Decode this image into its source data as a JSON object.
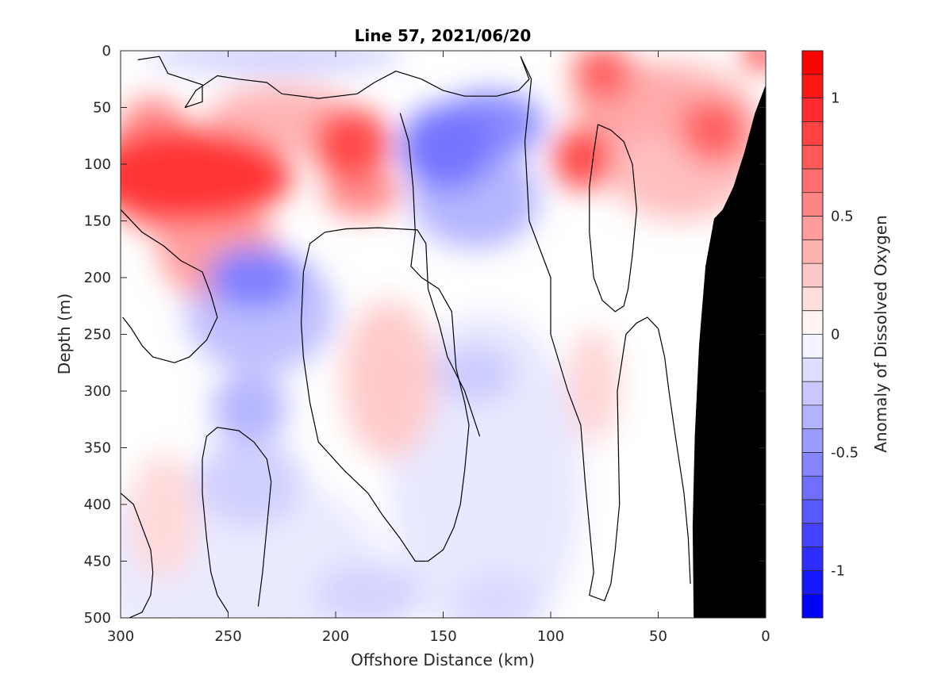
{
  "chart_data": {
    "type": "heatmap",
    "title": "Line 57, 2021/06/20",
    "xlabel": "Offshore Distance (km)",
    "ylabel": "Depth (m)",
    "colorbar_label": "Anomaly of Dissolved Oxygen",
    "xlim": [
      300,
      0
    ],
    "ylim": [
      0,
      500
    ],
    "x_ticks": [
      300,
      250,
      200,
      150,
      100,
      50,
      0
    ],
    "y_ticks": [
      0,
      50,
      100,
      150,
      200,
      250,
      300,
      350,
      400,
      450,
      500
    ],
    "colorbar": {
      "range": [
        -1.2,
        1.2
      ],
      "levels": 24,
      "ticks": [
        -1,
        -0.5,
        0,
        0.5,
        1
      ],
      "tick_labels": [
        "-1",
        "-0.5",
        "0",
        "0.5",
        "1"
      ],
      "colormap": "blue-white-red"
    },
    "colors": {
      "negative": "#0000ff",
      "zero": "#ffffff",
      "positive": "#ff0000",
      "bathymetry": "#000000",
      "contour": "#000000"
    },
    "contour_level": 0,
    "features": [
      {
        "kind": "positive",
        "x": 268,
        "y": 110,
        "rx": 48,
        "ry": 42,
        "value": 0.95
      },
      {
        "kind": "positive",
        "x": 285,
        "y": 100,
        "rx": 20,
        "ry": 60,
        "value": 0.55
      },
      {
        "kind": "positive",
        "x": 255,
        "y": 175,
        "rx": 28,
        "ry": 45,
        "value": 0.45
      },
      {
        "kind": "positive",
        "x": 193,
        "y": 82,
        "rx": 18,
        "ry": 32,
        "value": 0.85
      },
      {
        "kind": "positive",
        "x": 188,
        "y": 125,
        "rx": 18,
        "ry": 22,
        "value": 0.55
      },
      {
        "kind": "positive",
        "x": 225,
        "y": 60,
        "rx": 35,
        "ry": 30,
        "value": 0.35
      },
      {
        "kind": "positive",
        "x": 175,
        "y": 290,
        "rx": 22,
        "ry": 70,
        "value": 0.25
      },
      {
        "kind": "positive",
        "x": 280,
        "y": 410,
        "rx": 16,
        "ry": 55,
        "value": 0.18
      },
      {
        "kind": "positive",
        "x": 85,
        "y": 95,
        "rx": 14,
        "ry": 28,
        "value": 0.85
      },
      {
        "kind": "positive",
        "x": 76,
        "y": 20,
        "rx": 14,
        "ry": 25,
        "value": 0.75
      },
      {
        "kind": "positive",
        "x": 60,
        "y": 45,
        "rx": 30,
        "ry": 35,
        "value": 0.4
      },
      {
        "kind": "positive",
        "x": 24,
        "y": 70,
        "rx": 16,
        "ry": 30,
        "value": 0.75
      },
      {
        "kind": "positive",
        "x": 40,
        "y": 80,
        "rx": 40,
        "ry": 70,
        "value": 0.3
      },
      {
        "kind": "positive",
        "x": 3,
        "y": 5,
        "rx": 8,
        "ry": 12,
        "value": 1.15
      },
      {
        "kind": "positive",
        "x": 80,
        "y": 295,
        "rx": 12,
        "ry": 50,
        "value": 0.2
      },
      {
        "kind": "negative",
        "x": 148,
        "y": 85,
        "rx": 22,
        "ry": 38,
        "value": -0.65
      },
      {
        "kind": "negative",
        "x": 128,
        "y": 65,
        "rx": 25,
        "ry": 30,
        "value": -0.55
      },
      {
        "kind": "negative",
        "x": 135,
        "y": 130,
        "rx": 30,
        "ry": 45,
        "value": -0.35
      },
      {
        "kind": "negative",
        "x": 238,
        "y": 200,
        "rx": 22,
        "ry": 28,
        "value": -0.6
      },
      {
        "kind": "negative",
        "x": 235,
        "y": 230,
        "rx": 35,
        "ry": 55,
        "value": -0.3
      },
      {
        "kind": "negative",
        "x": 240,
        "y": 315,
        "rx": 18,
        "ry": 30,
        "value": -0.35
      },
      {
        "kind": "negative",
        "x": 240,
        "y": 380,
        "rx": 25,
        "ry": 40,
        "value": -0.22
      },
      {
        "kind": "negative",
        "x": 135,
        "y": 285,
        "rx": 18,
        "ry": 25,
        "value": -0.25
      },
      {
        "kind": "negative",
        "x": 228,
        "y": 5,
        "rx": 60,
        "ry": 15,
        "value": -0.22
      },
      {
        "kind": "negative",
        "x": 62,
        "y": 105,
        "rx": 8,
        "ry": 30,
        "value": -0.12
      },
      {
        "kind": "negative",
        "x": 185,
        "y": 480,
        "rx": 25,
        "ry": 30,
        "value": -0.2
      },
      {
        "kind": "negative",
        "x": 125,
        "y": 485,
        "rx": 20,
        "ry": 25,
        "value": -0.18
      },
      {
        "kind": "negative",
        "x": 130,
        "y": 380,
        "rx": 45,
        "ry": 150,
        "value": -0.11
      },
      {
        "kind": "negative",
        "x": 250,
        "y": 450,
        "rx": 70,
        "ry": 80,
        "value": -0.1
      }
    ],
    "bathymetry_outline": [
      [
        0,
        30
      ],
      [
        5,
        55
      ],
      [
        10,
        90
      ],
      [
        15,
        120
      ],
      [
        20,
        140
      ],
      [
        24,
        148
      ],
      [
        28,
        190
      ],
      [
        31,
        260
      ],
      [
        33,
        340
      ],
      [
        34,
        420
      ],
      [
        33.5,
        500
      ],
      [
        0,
        500
      ]
    ],
    "zero_contours": [
      [
        [
          292,
          8
        ],
        [
          282,
          5
        ],
        [
          278,
          20
        ],
        [
          262,
          30
        ],
        [
          262,
          45
        ],
        [
          270,
          50
        ],
        [
          265,
          35
        ],
        [
          255,
          22
        ],
        [
          245,
          25
        ],
        [
          232,
          28
        ],
        [
          225,
          38
        ],
        [
          208,
          42
        ],
        [
          190,
          38
        ],
        [
          182,
          28
        ],
        [
          172,
          18
        ],
        [
          160,
          25
        ],
        [
          150,
          35
        ],
        [
          140,
          40
        ],
        [
          125,
          40
        ],
        [
          115,
          35
        ],
        [
          110,
          25
        ],
        [
          114,
          5
        ]
      ],
      [
        [
          114,
          5
        ],
        [
          109,
          25
        ],
        [
          112,
          80
        ],
        [
          110,
          150
        ],
        [
          100,
          200
        ],
        [
          100,
          250
        ],
        [
          92,
          300
        ],
        [
          86,
          330
        ],
        [
          84,
          380
        ],
        [
          82,
          420
        ],
        [
          80,
          460
        ],
        [
          82,
          480
        ],
        [
          75,
          485
        ],
        [
          72,
          470
        ],
        [
          70,
          440
        ],
        [
          68,
          400
        ],
        [
          69,
          300
        ],
        [
          65,
          250
        ],
        [
          60,
          240
        ],
        [
          55,
          235
        ],
        [
          50,
          245
        ],
        [
          47,
          270
        ],
        [
          45,
          300
        ],
        [
          42,
          340
        ],
        [
          38,
          390
        ],
        [
          36,
          430
        ],
        [
          35,
          470
        ]
      ],
      [
        [
          170,
          55
        ],
        [
          166,
          80
        ],
        [
          164,
          120
        ],
        [
          163,
          160
        ],
        [
          165,
          190
        ],
        [
          160,
          200
        ],
        [
          152,
          210
        ],
        [
          146,
          230
        ],
        [
          144,
          280
        ],
        [
          140,
          310
        ],
        [
          138,
          330
        ],
        [
          139,
          350
        ],
        [
          140,
          370
        ],
        [
          142,
          400
        ],
        [
          145,
          420
        ],
        [
          150,
          440
        ],
        [
          157,
          450
        ],
        [
          163,
          450
        ],
        [
          170,
          430
        ],
        [
          178,
          410
        ],
        [
          185,
          390
        ],
        [
          196,
          370
        ],
        [
          208,
          345
        ],
        [
          212,
          310
        ],
        [
          215,
          270
        ],
        [
          216,
          240
        ],
        [
          215,
          195
        ],
        [
          212,
          170
        ],
        [
          205,
          160
        ],
        [
          195,
          157
        ],
        [
          180,
          156
        ],
        [
          162,
          158
        ],
        [
          158,
          170
        ],
        [
          157,
          210
        ],
        [
          152,
          240
        ],
        [
          148,
          270
        ],
        [
          140,
          300
        ],
        [
          133,
          340
        ]
      ],
      [
        [
          300,
          140
        ],
        [
          290,
          160
        ],
        [
          280,
          172
        ],
        [
          272,
          185
        ],
        [
          262,
          195
        ],
        [
          258,
          215
        ],
        [
          255,
          235
        ],
        [
          260,
          255
        ],
        [
          268,
          270
        ],
        [
          275,
          275
        ],
        [
          285,
          270
        ],
        [
          290,
          260
        ],
        [
          295,
          245
        ],
        [
          299,
          235
        ]
      ],
      [
        [
          300,
          390
        ],
        [
          294,
          400
        ],
        [
          290,
          420
        ],
        [
          286,
          440
        ],
        [
          285,
          460
        ],
        [
          286,
          480
        ],
        [
          290,
          495
        ],
        [
          296,
          500
        ]
      ],
      [
        [
          250,
          495
        ],
        [
          255,
          480
        ],
        [
          258,
          460
        ],
        [
          260,
          430
        ],
        [
          262,
          390
        ],
        [
          262,
          360
        ],
        [
          260,
          340
        ],
        [
          255,
          332
        ],
        [
          245,
          335
        ],
        [
          238,
          345
        ],
        [
          232,
          360
        ],
        [
          230,
          380
        ],
        [
          232,
          420
        ],
        [
          234,
          460
        ],
        [
          236,
          490
        ]
      ],
      [
        [
          78,
          65
        ],
        [
          72,
          70
        ],
        [
          66,
          80
        ],
        [
          62,
          100
        ],
        [
          60,
          140
        ],
        [
          62,
          180
        ],
        [
          64,
          210
        ],
        [
          66,
          225
        ],
        [
          70,
          230
        ],
        [
          76,
          220
        ],
        [
          80,
          200
        ],
        [
          82,
          160
        ],
        [
          82,
          120
        ],
        [
          80,
          90
        ],
        [
          78,
          65
        ]
      ]
    ]
  }
}
